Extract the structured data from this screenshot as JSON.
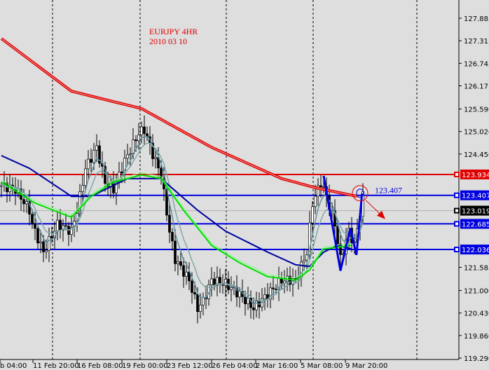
{
  "chart_data": {
    "type": "candlestick",
    "title": "EURJPY 4HR",
    "subtitle": "2010 03 10",
    "ylim": [
      119.29,
      128.3
    ],
    "y_ticks": [
      "127.885",
      "127.315",
      "126.745",
      "126.175",
      "125.590",
      "125.020",
      "124.450",
      "121.585",
      "121.000",
      "120.430",
      "119.860",
      "119.290"
    ],
    "x_ticks": [
      "b 04:00",
      "11 Feb 20:00",
      "16 Feb 08:00",
      "19 Feb 00:00",
      "23 Feb 12:00",
      "26 Feb 04:00",
      "2 Mar 16:00",
      "5 Mar 08:00",
      "9 Mar 20:00"
    ],
    "price_path": [
      [
        0,
        123.65
      ],
      [
        5,
        123.56
      ],
      [
        10,
        123.03
      ],
      [
        11,
        122.67
      ],
      [
        15,
        121.97
      ],
      [
        20,
        122.67
      ],
      [
        25,
        122.5
      ],
      [
        27,
        123.03
      ],
      [
        30,
        124.09
      ],
      [
        34,
        124.62
      ],
      [
        37,
        123.74
      ],
      [
        40,
        123.56
      ],
      [
        44,
        124.27
      ],
      [
        49,
        124.98
      ],
      [
        51,
        125.07
      ],
      [
        54,
        124.45
      ],
      [
        57,
        123.92
      ],
      [
        60,
        122.5
      ],
      [
        62,
        121.79
      ],
      [
        67,
        121.26
      ],
      [
        70,
        120.55
      ],
      [
        72,
        120.73
      ],
      [
        75,
        121.26
      ],
      [
        80,
        121.17
      ],
      [
        85,
        120.9
      ],
      [
        90,
        120.55
      ],
      [
        95,
        120.9
      ],
      [
        100,
        121.26
      ],
      [
        105,
        121.26
      ],
      [
        109,
        121.97
      ],
      [
        111,
        123.21
      ],
      [
        114,
        123.74
      ],
      [
        116,
        123.38
      ],
      [
        119,
        122.67
      ],
      [
        121,
        121.79
      ],
      [
        124,
        122.5
      ],
      [
        126,
        122.14
      ],
      [
        129,
        123.38
      ]
    ],
    "moving_averages": [
      {
        "color": "#e00000",
        "points": [
          [
            0,
            127.37
          ],
          [
            25,
            126.04
          ],
          [
            50,
            125.6
          ],
          [
            75,
            124.62
          ],
          [
            100,
            123.83
          ],
          [
            112,
            123.6
          ],
          [
            127,
            123.38
          ]
        ]
      },
      {
        "color": "#0000a0",
        "points": [
          [
            0,
            124.41
          ],
          [
            10,
            124.09
          ],
          [
            25,
            123.38
          ],
          [
            32,
            123.38
          ],
          [
            45,
            123.83
          ],
          [
            57,
            123.83
          ],
          [
            70,
            123.03
          ],
          [
            80,
            122.5
          ],
          [
            95,
            121.97
          ],
          [
            105,
            121.65
          ],
          [
            110,
            121.61
          ],
          [
            115,
            121.97
          ],
          [
            120,
            122.14
          ],
          [
            125,
            122.05
          ]
        ]
      },
      {
        "color": "#00e000",
        "points": [
          [
            0,
            123.74
          ],
          [
            12,
            123.21
          ],
          [
            25,
            122.85
          ],
          [
            32,
            123.38
          ],
          [
            40,
            123.74
          ],
          [
            50,
            123.92
          ],
          [
            57,
            123.83
          ],
          [
            65,
            123.03
          ],
          [
            75,
            122.14
          ],
          [
            85,
            121.7
          ],
          [
            95,
            121.35
          ],
          [
            105,
            121.26
          ],
          [
            110,
            121.52
          ],
          [
            115,
            122.05
          ],
          [
            125,
            122.14
          ]
        ]
      }
    ],
    "levels": [
      {
        "price": "123.934",
        "color": "#e00000"
      },
      {
        "price": "123.407",
        "color": "#0000e0"
      },
      {
        "price": "122.685",
        "color": "#0000e0"
      },
      {
        "price": "122.036",
        "color": "#0000e0"
      }
    ],
    "current_price": "123.019",
    "pattern_points": [
      [
        115,
        123.9
      ],
      [
        121,
        121.5
      ],
      [
        124.5,
        122.57
      ],
      [
        126.7,
        121.9
      ],
      [
        128.7,
        123.45
      ]
    ],
    "annotation": "123.407",
    "colors": {
      "background": "#dedede",
      "grid": "#000000",
      "candle": "#000000"
    }
  }
}
